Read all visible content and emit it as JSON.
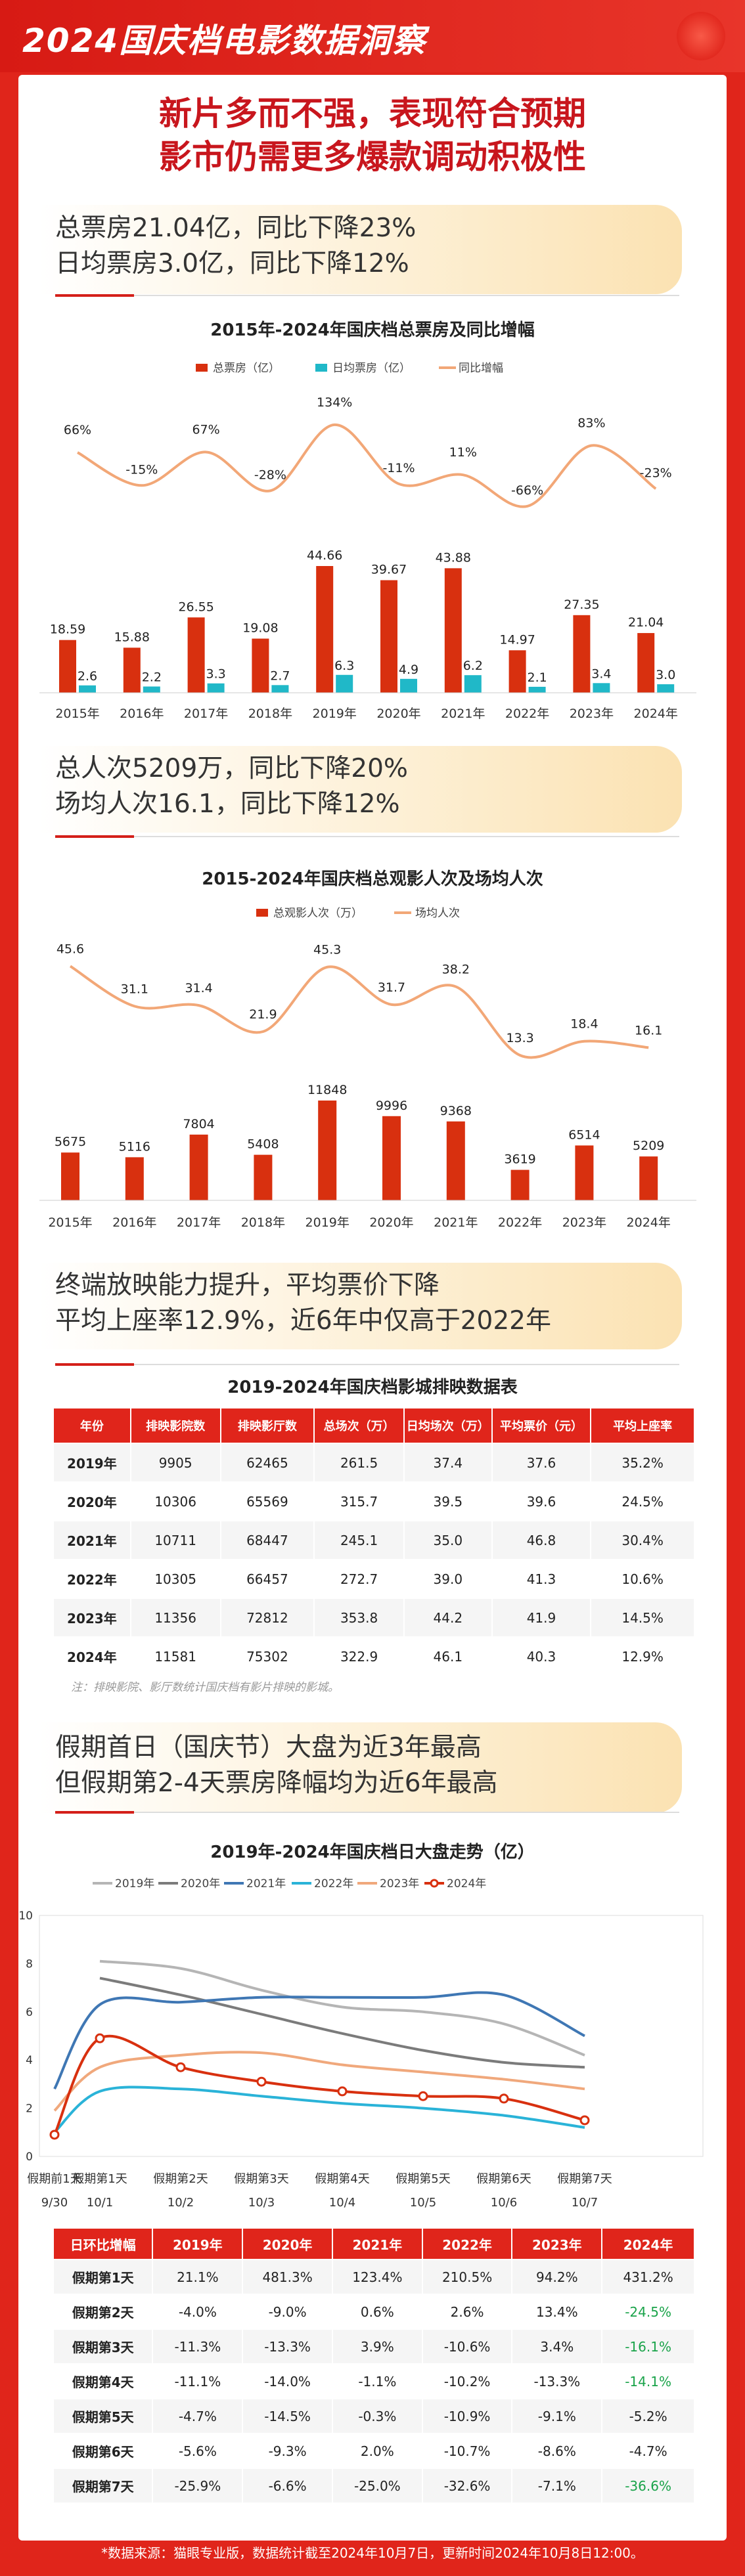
{
  "header_title": "2024国庆档电影数据洞察",
  "headline": [
    "新片多而不强，表现符合预期",
    "影市仍需更多爆款调动积极性"
  ],
  "box_office": {
    "band": [
      "总票房21.04亿，同比下降23%",
      "日均票房3.0亿，同比下降12%"
    ],
    "chart_data": {
      "type": "bar",
      "title": "2015年-2024年国庆档总票房及同比增幅",
      "categories": [
        "2015年",
        "2016年",
        "2017年",
        "2018年",
        "2019年",
        "2020年",
        "2021年",
        "2022年",
        "2023年",
        "2024年"
      ],
      "series": [
        {
          "name": "总票房（亿）",
          "type": "bar",
          "color": "#d8300f",
          "values": [
            18.59,
            15.88,
            26.55,
            19.08,
            44.66,
            39.67,
            43.88,
            14.97,
            27.35,
            21.04
          ]
        },
        {
          "name": "日均票房（亿）",
          "type": "bar",
          "color": "#20b8c8",
          "values": [
            2.6,
            2.2,
            3.3,
            2.7,
            6.3,
            4.9,
            6.2,
            2.1,
            3.4,
            3.0
          ]
        },
        {
          "name": "同比增幅",
          "type": "line",
          "color": "#f2a777",
          "values": [
            66,
            -15,
            67,
            -28,
            134,
            -11,
            11,
            -66,
            83,
            -23
          ],
          "labels": [
            "66%",
            "-15%",
            "67%",
            "-28%",
            "134%",
            "-11%",
            "11%",
            "-66%",
            "83%",
            "-23%"
          ]
        }
      ]
    }
  },
  "attendance": {
    "band": [
      "总人次5209万，同比下降20%",
      "场均人次16.1，同比下降12%"
    ],
    "chart_data": {
      "type": "bar",
      "title": "2015-2024年国庆档总观影人次及场均人次",
      "categories": [
        "2015年",
        "2016年",
        "2017年",
        "2018年",
        "2019年",
        "2020年",
        "2021年",
        "2022年",
        "2023年",
        "2024年"
      ],
      "series": [
        {
          "name": "总观影人次（万）",
          "type": "bar",
          "color": "#d8300f",
          "values": [
            5675,
            5116,
            7804,
            5408,
            11848,
            9996,
            9368,
            3619,
            6514,
            5209
          ]
        },
        {
          "name": "场均人次",
          "type": "line",
          "color": "#f2a777",
          "values": [
            45.6,
            31.1,
            31.4,
            21.9,
            45.3,
            31.7,
            38.2,
            13.3,
            18.4,
            16.1
          ]
        }
      ]
    }
  },
  "screening": {
    "band": [
      "终端放映能力提升，平均票价下降",
      "平均上座率12.9%，近6年中仅高于2022年"
    ],
    "table_title": "2019-2024年国庆档影城排映数据表",
    "headers": [
      "年份",
      "排映影院数",
      "排映影厅数",
      "总场次（万）",
      "日均场次（万）",
      "平均票价（元）",
      "平均上座率"
    ],
    "rows": [
      [
        "2019年",
        "9905",
        "62465",
        "261.5",
        "37.4",
        "37.6",
        "35.2%"
      ],
      [
        "2020年",
        "10306",
        "65569",
        "315.7",
        "39.5",
        "39.6",
        "24.5%"
      ],
      [
        "2021年",
        "10711",
        "68447",
        "245.1",
        "35.0",
        "46.8",
        "30.4%"
      ],
      [
        "2022年",
        "10305",
        "66457",
        "272.7",
        "39.0",
        "41.3",
        "10.6%"
      ],
      [
        "2023年",
        "11356",
        "72812",
        "353.8",
        "44.2",
        "41.9",
        "14.5%"
      ],
      [
        "2024年",
        "11581",
        "75302",
        "322.9",
        "46.1",
        "40.3",
        "12.9%"
      ]
    ],
    "note": "注：排映影院、影厅数统计国庆档有影片排映的影城。"
  },
  "daily": {
    "band": [
      "假期首日（国庆节）大盘为近3年最高",
      "但假期第2-4天票房降幅均为近6年最高"
    ],
    "chart_data": {
      "type": "line",
      "title": "2019年-2024年国庆档日大盘走势（亿）",
      "x": [
        "假期前1天",
        "假期第1天",
        "假期第2天",
        "假期第3天",
        "假期第4天",
        "假期第5天",
        "假期第6天",
        "假期第7天"
      ],
      "x_sub": [
        "9/30",
        "10/1",
        "10/2",
        "10/3",
        "10/4",
        "10/5",
        "10/6",
        "10/7"
      ],
      "ylim": [
        0,
        10
      ],
      "yticks": [
        0,
        2,
        4,
        6,
        8,
        10
      ],
      "series": [
        {
          "name": "2019年",
          "color": "#b5b5b5",
          "values": [
            null,
            8.1,
            7.8,
            6.9,
            6.2,
            6.0,
            5.5,
            4.2
          ]
        },
        {
          "name": "2020年",
          "color": "#7b7b7b",
          "values": [
            null,
            7.4,
            6.7,
            5.9,
            5.1,
            4.4,
            3.9,
            3.7
          ]
        },
        {
          "name": "2021年",
          "color": "#3f77b4",
          "values": [
            2.8,
            6.3,
            6.4,
            6.6,
            6.6,
            6.6,
            6.7,
            5.0
          ]
        },
        {
          "name": "2022年",
          "color": "#2ab3d8",
          "values": [
            1.0,
            2.7,
            2.8,
            2.5,
            2.2,
            2.0,
            1.7,
            1.2
          ]
        },
        {
          "name": "2023年",
          "color": "#f0a87c",
          "values": [
            1.9,
            3.7,
            4.2,
            4.3,
            3.8,
            3.5,
            3.2,
            2.8
          ]
        },
        {
          "name": "2024年",
          "color": "#d8300f",
          "values": [
            0.9,
            4.9,
            3.7,
            3.1,
            2.7,
            2.5,
            2.4,
            1.5
          ]
        }
      ]
    },
    "table_headers": [
      "日环比增幅",
      "2019年",
      "2020年",
      "2021年",
      "2022年",
      "2023年",
      "2024年"
    ],
    "table_rows": [
      [
        "假期第1天",
        "21.1%",
        "481.3%",
        "123.4%",
        "210.5%",
        "94.2%",
        "431.2%"
      ],
      [
        "假期第2天",
        "-4.0%",
        "-9.0%",
        "0.6%",
        "2.6%",
        "13.4%",
        "-24.5%"
      ],
      [
        "假期第3天",
        "-11.3%",
        "-13.3%",
        "3.9%",
        "-10.6%",
        "3.4%",
        "-16.1%"
      ],
      [
        "假期第4天",
        "-11.1%",
        "-14.0%",
        "-1.1%",
        "-10.2%",
        "-13.3%",
        "-14.1%"
      ],
      [
        "假期第5天",
        "-4.7%",
        "-14.5%",
        "-0.3%",
        "-10.9%",
        "-9.1%",
        "-5.2%"
      ],
      [
        "假期第6天",
        "-5.6%",
        "-9.3%",
        "2.0%",
        "-10.7%",
        "-8.6%",
        "-4.7%"
      ],
      [
        "假期第7天",
        "-25.9%",
        "-6.6%",
        "-25.0%",
        "-32.6%",
        "-7.1%",
        "-36.6%"
      ]
    ],
    "highlight_color": "#1aa34a"
  },
  "footer": "*数据来源：猫眼专业版，数据统计截至2024年10月7日，更新时间2024年10月8日12:00。"
}
